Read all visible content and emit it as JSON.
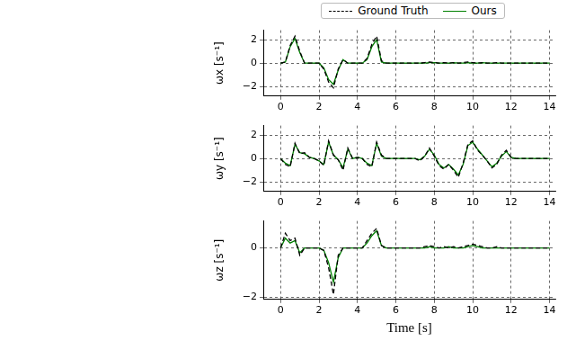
{
  "chart_data": [
    {
      "type": "line",
      "y_label": "ωx [s⁻¹]",
      "legend": "top",
      "grid": true,
      "xlim": [
        -0.9,
        14.3
      ],
      "xticks": [
        0,
        2,
        4,
        6,
        8,
        10,
        12,
        14
      ],
      "ylim": [
        -2.8,
        2.8
      ],
      "yticks": [
        {
          "value": -2,
          "label": "−2"
        },
        0,
        2
      ],
      "x": [
        0,
        0.25,
        0.5,
        0.75,
        1,
        1.25,
        1.5,
        1.75,
        2,
        2.25,
        2.5,
        2.75,
        3,
        3.25,
        3.5,
        3.75,
        4,
        4.25,
        4.5,
        4.75,
        5,
        5.25,
        5.5,
        5.75,
        6,
        6.25,
        6.5,
        6.75,
        7,
        7.25,
        7.5,
        7.75,
        8,
        8.25,
        8.5,
        8.75,
        9,
        9.25,
        9.5,
        9.75,
        10,
        10.25,
        10.5,
        10.75,
        11,
        11.25,
        11.5,
        11.75,
        12,
        12.25,
        12.5,
        12.75,
        13,
        13.25,
        13.5,
        13.75,
        14
      ],
      "series": [
        {
          "name": "Ground Truth",
          "color": "#000000",
          "line_style": "dashed",
          "values": [
            0,
            0.1,
            1.5,
            2.3,
            1.0,
            0,
            0,
            0,
            0,
            -0.5,
            -1.6,
            -2.1,
            -0.5,
            0.3,
            0,
            0,
            0,
            0,
            0.4,
            1.6,
            2.3,
            0.2,
            0,
            0,
            0,
            0,
            0,
            0,
            0,
            0,
            0.05,
            0.1,
            0.05,
            0,
            0.05,
            0,
            0.05,
            0,
            0.05,
            0.1,
            0.05,
            0,
            0.05,
            0,
            0,
            0.05,
            0,
            0,
            0,
            0,
            0,
            0,
            0,
            0,
            0,
            0,
            0
          ]
        },
        {
          "name": "Ours",
          "color": "#008000",
          "line_style": "solid",
          "values": [
            0,
            0.1,
            1.4,
            2.1,
            0.9,
            0,
            0,
            0,
            0,
            -0.4,
            -1.4,
            -1.8,
            -0.6,
            0.3,
            0,
            0,
            0,
            0,
            0.3,
            1.4,
            2.0,
            0.1,
            0,
            0,
            0,
            0,
            0,
            0,
            0,
            0,
            0,
            0.05,
            0.05,
            0,
            0,
            0,
            0.05,
            0,
            0,
            0.05,
            0,
            0,
            0.05,
            0,
            0,
            0,
            0,
            0,
            0,
            0,
            0,
            0,
            0,
            0,
            0,
            0,
            0
          ]
        }
      ]
    },
    {
      "type": "line",
      "y_label": "ωy [s⁻¹]",
      "grid": true,
      "xlim": [
        -0.9,
        14.3
      ],
      "xticks": [
        0,
        2,
        4,
        6,
        8,
        10,
        12,
        14
      ],
      "ylim": [
        -2.8,
        2.8
      ],
      "yticks": [
        {
          "value": -2,
          "label": "−2"
        },
        0,
        2
      ],
      "x": [
        0,
        0.25,
        0.5,
        0.75,
        1,
        1.25,
        1.5,
        1.75,
        2,
        2.25,
        2.5,
        2.75,
        3,
        3.25,
        3.5,
        3.75,
        4,
        4.25,
        4.5,
        4.75,
        5,
        5.25,
        5.5,
        5.75,
        6,
        6.25,
        6.5,
        6.75,
        7,
        7.25,
        7.5,
        7.75,
        8,
        8.25,
        8.5,
        8.75,
        9,
        9.25,
        9.5,
        9.75,
        10,
        10.25,
        10.5,
        10.75,
        11,
        11.25,
        11.5,
        11.75,
        12,
        12.25,
        12.5,
        12.75,
        13,
        13.25,
        13.5,
        13.75,
        14
      ],
      "series": [
        {
          "name": "Ground Truth",
          "color": "#000000",
          "line_style": "dashed",
          "values": [
            0,
            -0.5,
            -0.7,
            1.3,
            0.4,
            0.5,
            0.1,
            0,
            -0.2,
            -0.6,
            1.5,
            0.3,
            -0.1,
            -1.0,
            0.9,
            0,
            0.1,
            0,
            -0.5,
            -0.7,
            1.4,
            0.3,
            0,
            0,
            0,
            0,
            0,
            0,
            0,
            -0.2,
            0.2,
            0.9,
            0.2,
            -0.6,
            -0.9,
            -0.5,
            -1.0,
            -1.6,
            -0.4,
            1.2,
            1.5,
            0.7,
            0.3,
            -0.2,
            -0.8,
            -0.5,
            0.3,
            0.7,
            0.1,
            0,
            0,
            0,
            0,
            0,
            0,
            0,
            0
          ]
        },
        {
          "name": "Ours",
          "color": "#008000",
          "line_style": "solid",
          "values": [
            0,
            -0.4,
            -0.6,
            1.2,
            0.5,
            0.4,
            0.1,
            0,
            -0.2,
            -0.5,
            1.4,
            0.3,
            -0.1,
            -0.8,
            0.8,
            0,
            0.1,
            0,
            -0.4,
            -0.6,
            1.3,
            0.2,
            0,
            0,
            0,
            0,
            0,
            0,
            0,
            -0.1,
            0.2,
            0.8,
            0.3,
            -0.5,
            -0.8,
            -0.5,
            -0.9,
            -1.4,
            -0.5,
            1.1,
            1.4,
            0.8,
            0.3,
            -0.2,
            -0.7,
            -0.4,
            0.2,
            0.6,
            0.1,
            0,
            0,
            0,
            0,
            0,
            0,
            0,
            0
          ]
        }
      ]
    },
    {
      "type": "line",
      "y_label": "ωz [s⁻¹]",
      "x_label": "Time [s]",
      "grid": true,
      "xlim": [
        -0.9,
        14.3
      ],
      "xticks": [
        0,
        2,
        4,
        6,
        8,
        10,
        12,
        14
      ],
      "ylim": [
        -2.1,
        1.1
      ],
      "yticks": [
        {
          "value": -2,
          "label": "−2"
        },
        0
      ],
      "x": [
        0,
        0.25,
        0.5,
        0.75,
        1,
        1.25,
        1.5,
        1.75,
        2,
        2.25,
        2.5,
        2.75,
        3,
        3.25,
        3.5,
        3.75,
        4,
        4.25,
        4.5,
        4.75,
        5,
        5.25,
        5.5,
        5.75,
        6,
        6.25,
        6.5,
        6.75,
        7,
        7.25,
        7.5,
        7.75,
        8,
        8.25,
        8.5,
        8.75,
        9,
        9.25,
        9.5,
        9.75,
        10,
        10.25,
        10.5,
        10.75,
        11,
        11.25,
        11.5,
        11.75,
        12,
        12.25,
        12.5,
        12.75,
        13,
        13.25,
        13.5,
        13.75,
        14
      ],
      "series": [
        {
          "name": "Ground Truth",
          "color": "#000000",
          "line_style": "dashed",
          "values": [
            0,
            0.6,
            0.3,
            0.4,
            -0.3,
            0,
            0,
            0,
            0,
            -0.1,
            -0.8,
            -1.9,
            -0.3,
            0,
            0,
            0,
            0,
            0,
            0.3,
            0.6,
            0.8,
            0.1,
            0,
            0,
            0,
            0,
            0,
            0,
            0,
            0,
            0.05,
            0.1,
            0.05,
            0,
            0.05,
            0,
            0.05,
            0,
            0.05,
            0.1,
            0.15,
            0.1,
            0.05,
            0,
            0,
            0.05,
            0,
            0,
            0,
            0,
            0,
            0,
            0,
            0,
            0,
            0,
            0
          ]
        },
        {
          "name": "Ours",
          "color": "#008000",
          "line_style": "solid",
          "values": [
            0,
            0.4,
            0.2,
            0.3,
            -0.2,
            0,
            0,
            0,
            0,
            -0.1,
            -0.6,
            -1.4,
            -0.4,
            0,
            0,
            0,
            0,
            0,
            0.2,
            0.5,
            0.7,
            0.1,
            0,
            0,
            0,
            0,
            0,
            0,
            0,
            0,
            0,
            0.05,
            0,
            0,
            0,
            0.05,
            0,
            0,
            0,
            0.05,
            0.1,
            0.05,
            0,
            0,
            0,
            0,
            0,
            0,
            0,
            0,
            0,
            0,
            0,
            0,
            0,
            0,
            0
          ]
        }
      ]
    }
  ]
}
